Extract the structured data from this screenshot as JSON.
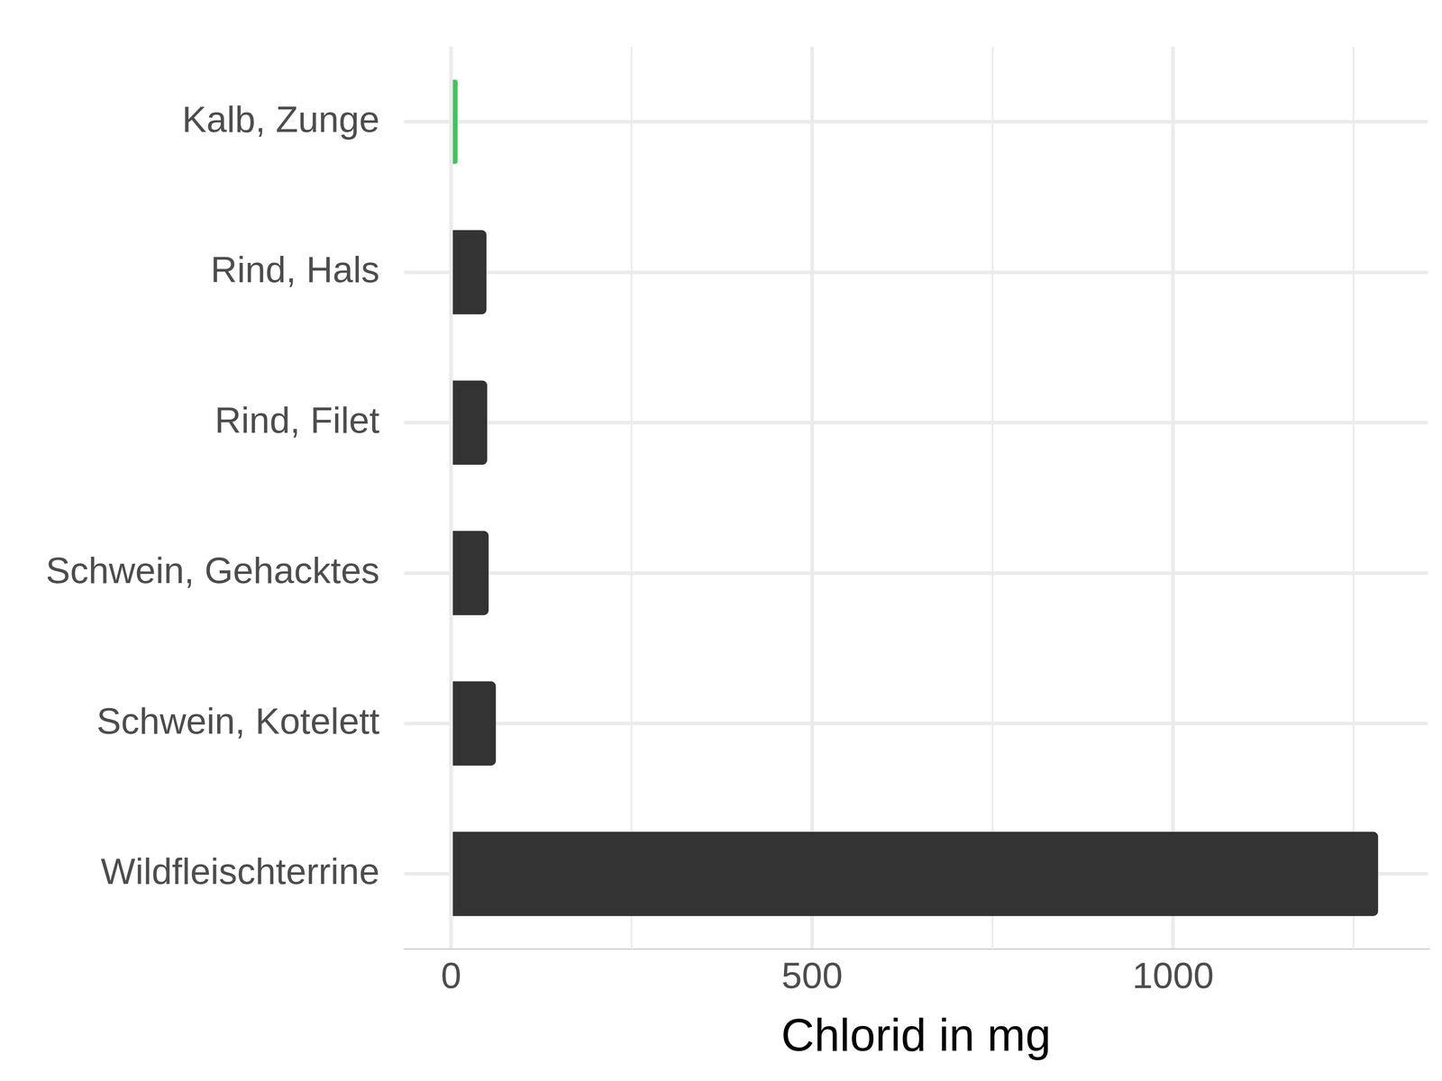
{
  "chart_data": {
    "type": "bar",
    "orientation": "horizontal",
    "categories": [
      "Kalb, Zunge",
      "Rind, Hals",
      "Rind, Filet",
      "Schwein, Gehacktes",
      "Schwein, Kotelett",
      "Wildfleischterrine"
    ],
    "values": [
      9,
      49,
      50,
      52,
      62,
      1284
    ],
    "colors": [
      "#3fc45c",
      "#333333",
      "#333333",
      "#333333",
      "#333333",
      "#333333"
    ],
    "x_label": "Chlorid in mg",
    "xlim": [
      -65,
      1353
    ],
    "xticks": [
      0,
      500,
      1000
    ],
    "grid": true
  }
}
